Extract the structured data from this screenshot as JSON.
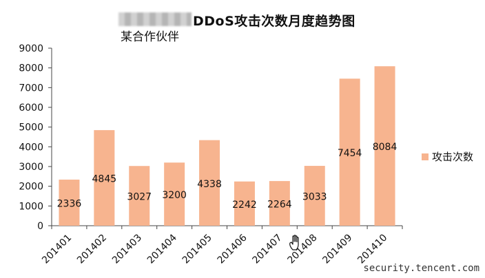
{
  "chart_data": {
    "type": "bar",
    "title": "DDoS攻击次数月度趋势图",
    "subtitle": "某合作伙伴",
    "categories": [
      "201401",
      "201402",
      "201403",
      "201404",
      "201405",
      "201406",
      "201407",
      "201408",
      "201409",
      "201410"
    ],
    "series": [
      {
        "name": "攻击次数",
        "values": [
          2336,
          4845,
          3027,
          3200,
          4338,
          2242,
          2264,
          3033,
          7454,
          8084
        ]
      }
    ],
    "data_labels": [
      "2336",
      "4845",
      "3027",
      "3200",
      "4338",
      "2242",
      "2264",
      "3033",
      "7454",
      "8084"
    ],
    "ylim": [
      0,
      9000
    ],
    "yticks": [
      "0",
      "1000",
      "2000",
      "3000",
      "4000",
      "5000",
      "6000",
      "7000",
      "8000",
      "9000"
    ],
    "xlabel": "",
    "ylabel": "",
    "legend_position": "right",
    "grid": false,
    "bar_color": "#f7b48f"
  },
  "overlay": {
    "redacted_prefix_icon": "blurred-text-mask",
    "cursor_icon": "hand-pointer-icon",
    "watermark": "security.tencent.com"
  }
}
